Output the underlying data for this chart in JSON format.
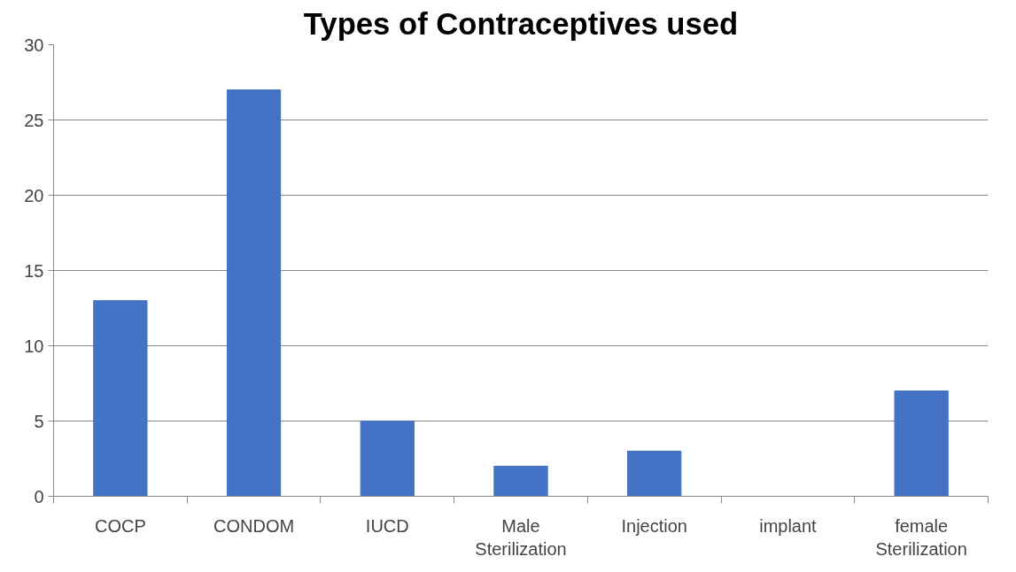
{
  "chart_data": {
    "type": "bar",
    "title": "Types of Contraceptives used",
    "categories": [
      "COCP",
      "CONDOM",
      "IUCD",
      "Male\nSterilization",
      "Injection",
      "implant",
      "female\nSterilization"
    ],
    "values": [
      13,
      27,
      5,
      2,
      3,
      0,
      7
    ],
    "color": "#4472c4",
    "ylim": [
      0,
      30
    ],
    "yticks": [
      0,
      5,
      10,
      15,
      20,
      25,
      30
    ],
    "grid": "y"
  }
}
